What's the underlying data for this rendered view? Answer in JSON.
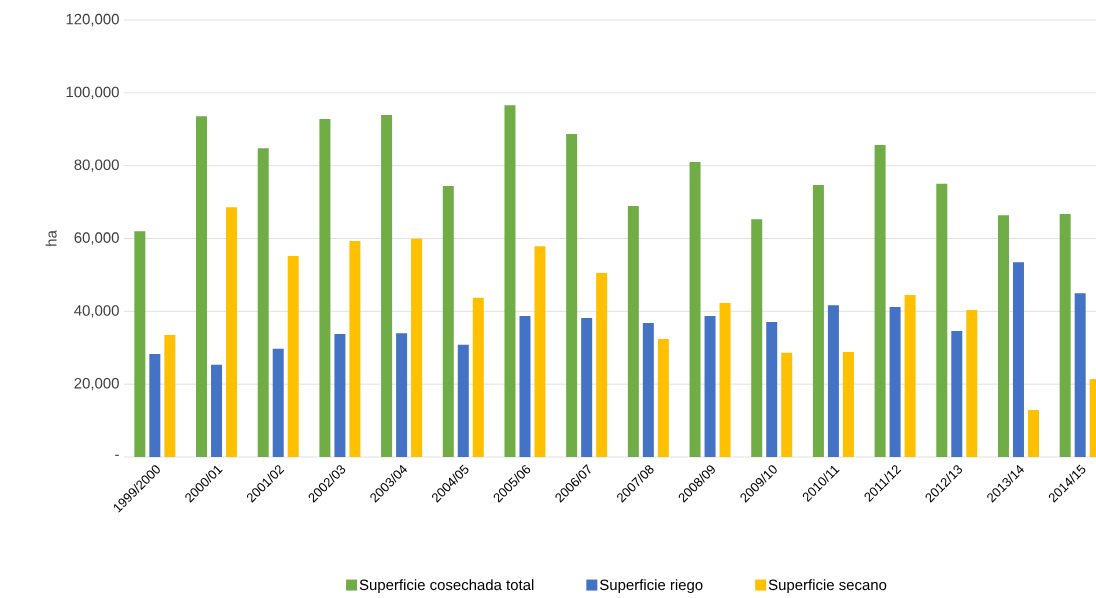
{
  "chart_data": {
    "type": "bar",
    "ylabel": "ha",
    "categories": [
      "1999/2000",
      "2000/01",
      "2001/02",
      "2002/03",
      "2003/04",
      "2004/05",
      "2005/06",
      "2006/07",
      "2007/08",
      "2008/09",
      "2009/10",
      "2010/11",
      "2011/12",
      "2012/13",
      "2013/14",
      "2014/15"
    ],
    "series": [
      {
        "name": "Superficie cosechada total",
        "color": "#70ad47",
        "values": [
          62000,
          93600,
          84800,
          92800,
          93900,
          74400,
          96600,
          88700,
          68900,
          81000,
          65300,
          74700,
          85700,
          75000,
          66400,
          66700
        ]
      },
      {
        "name": "Superficie riego",
        "color": "#4472c4",
        "values": [
          28300,
          25300,
          29700,
          33800,
          34000,
          30800,
          38700,
          38200,
          36800,
          38700,
          37100,
          41700,
          41200,
          34600,
          53500,
          45000
        ]
      },
      {
        "name": "Superficie secano",
        "color": "#ffc000",
        "values": [
          33500,
          68600,
          55200,
          59300,
          59900,
          43700,
          57900,
          50500,
          32400,
          42300,
          28600,
          28800,
          44500,
          40400,
          12900,
          21400
        ]
      }
    ],
    "ylim": [
      0,
      120000
    ],
    "yticks": [
      {
        "value": 0,
        "label": "-"
      },
      {
        "value": 20000,
        "label": "20,000"
      },
      {
        "value": 40000,
        "label": "40,000"
      },
      {
        "value": 60000,
        "label": "60,000"
      },
      {
        "value": 80000,
        "label": "80,000"
      },
      {
        "value": 100000,
        "label": "100,000"
      },
      {
        "value": 120000,
        "label": "120,000"
      }
    ],
    "grid": "y",
    "legend": "bottom"
  }
}
